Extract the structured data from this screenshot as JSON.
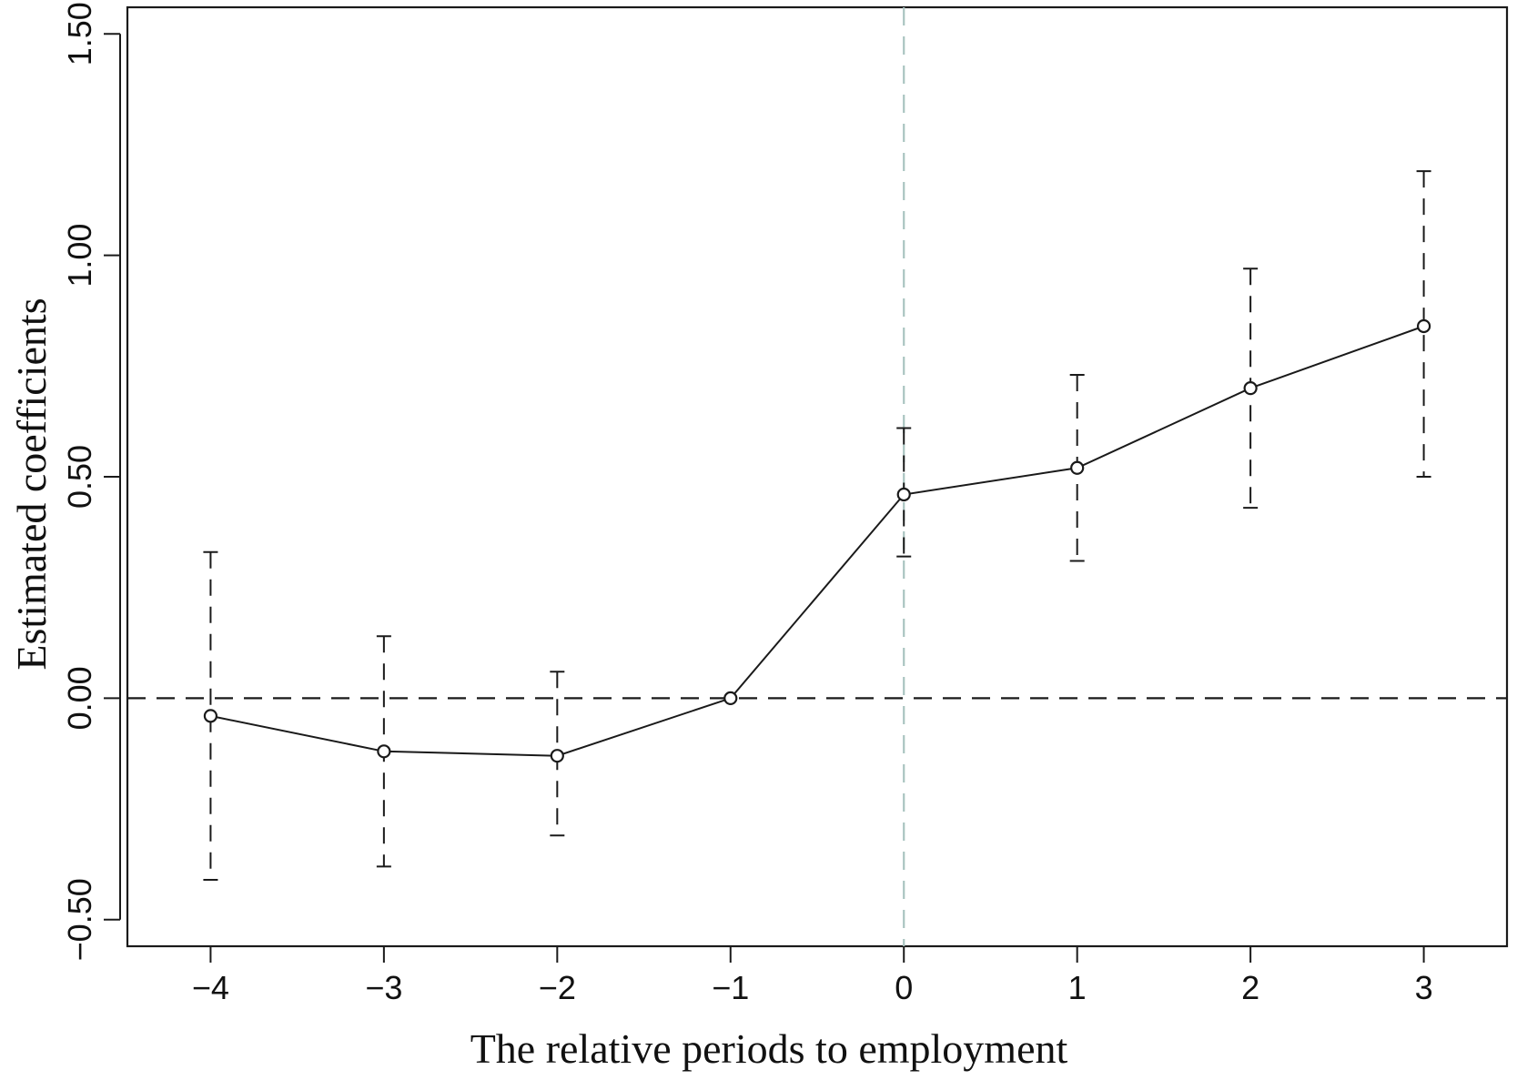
{
  "chart_data": {
    "type": "line",
    "title": "",
    "xlabel": "The relative periods to employment",
    "ylabel": "Estimated coefficients",
    "x": [
      -4,
      -3,
      -2,
      -1,
      0,
      1,
      2,
      3
    ],
    "series": [
      {
        "values": [
          -0.04,
          -0.12,
          -0.13,
          0.0,
          0.46,
          0.52,
          0.7,
          0.84
        ],
        "lower": [
          -0.41,
          -0.38,
          -0.31,
          0.0,
          0.32,
          0.31,
          0.43,
          0.5
        ],
        "upper": [
          0.33,
          0.14,
          0.06,
          0.0,
          0.61,
          0.73,
          0.97,
          1.19
        ]
      }
    ],
    "xticks": [
      -4,
      -3,
      -2,
      -1,
      0,
      1,
      2,
      3
    ],
    "xtick_labels": [
      "−4",
      "−3",
      "−2",
      "−1",
      "0",
      "1",
      "2",
      "3"
    ],
    "yticks": [
      -0.5,
      0,
      0.5,
      1,
      1.5
    ],
    "ytick_labels": [
      "−0.50",
      "0.00",
      "0.50",
      "1.00",
      "1.50"
    ],
    "xlim": [
      -4.48,
      3.48
    ],
    "ylim": [
      -0.56,
      1.56
    ],
    "hline": 0,
    "vline": 0,
    "grid": false,
    "legend": "none",
    "colors": {
      "line": "#1a1a1a",
      "errorbar": "#1a1a1a",
      "hline": "#1a1a1a",
      "vline": "#a9c4c0",
      "axes": "#1a1a1a"
    }
  }
}
